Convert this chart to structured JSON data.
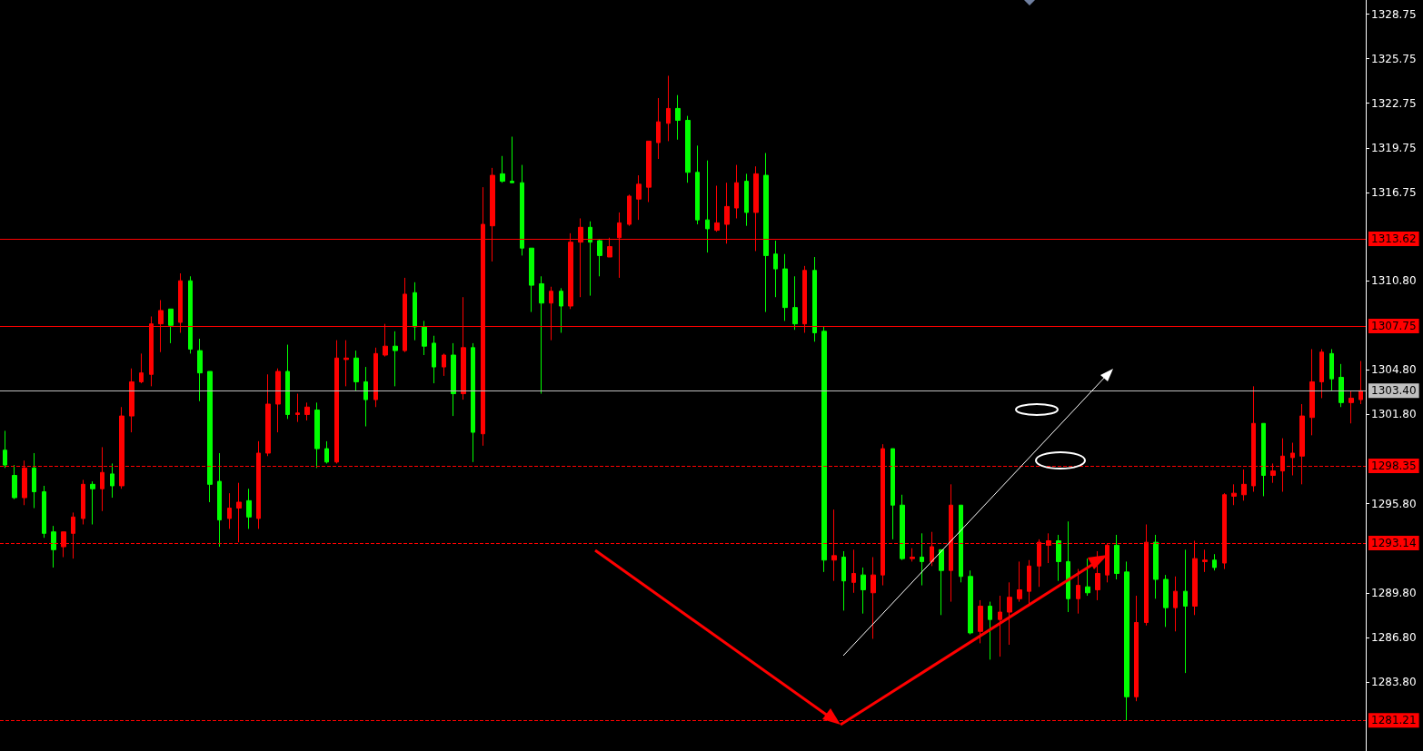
{
  "chart_data": {
    "type": "candlestick",
    "tick_labels": "y",
    "colors": [
      "#00ff00",
      "#00ff00",
      "#ff0000",
      "#00ff00",
      "#00ff00",
      "#00ff00",
      "#ff0000",
      "#ff0000",
      "#ff0000",
      "#00ff00",
      "#ff0000",
      "#00ff00",
      "#ff0000",
      "#ff0000",
      "#ff0000",
      "#ff0000",
      "#ff0000",
      "#00ff00",
      "#ff0000",
      "#00ff00",
      "#00ff00",
      "#00ff00",
      "#00ff00",
      "#ff0000",
      "#ff0000",
      "#00ff00",
      "#ff0000",
      "#ff0000",
      "#ff0000",
      "#00ff00",
      "#ff0000",
      "#ff0000",
      "#00ff00",
      "#00ff00",
      "#ff0000",
      "#ff0000",
      "#00ff00",
      "#00ff00",
      "#ff0000",
      "#ff0000",
      "#00ff00",
      "#ff0000",
      "#00ff00",
      "#00ff00",
      "#00ff00",
      "#ff0000",
      "#00ff00",
      "#ff0000",
      "#00ff00",
      "#ff0000",
      "#ff0000",
      "#00ff00",
      "#00ff00",
      "#00ff00",
      "#00ff00",
      "#00ff00",
      "#ff0000",
      "#00ff00",
      "#ff0000",
      "#ff0000",
      "#00ff00",
      "#00ff00",
      "#ff0000",
      "#ff0000",
      "#ff0000",
      "#ff0000",
      "#ff0000",
      "#ff0000",
      "#ff0000",
      "#00ff00",
      "#00ff00",
      "#00ff00",
      "#00ff00",
      "#ff0000",
      "#ff0000",
      "#ff0000",
      "#00ff00",
      "#ff0000",
      "#00ff00",
      "#00ff00",
      "#00ff00",
      "#00ff00",
      "#ff0000",
      "#00ff00",
      "#00ff00",
      "#ff0000",
      "#00ff00",
      "#ff0000",
      "#00ff00",
      "#ff0000",
      "#ff0000",
      "#00ff00",
      "#00ff00",
      "#ff0000",
      "#00ff00",
      "#ff0000",
      "#00ff00",
      "#ff0000",
      "#00ff00",
      "#00ff00",
      "#ff0000",
      "#00ff00",
      "#ff0000",
      "#ff0000",
      "#ff0000",
      "#ff0000",
      "#ff0000",
      "#ff0000",
      "#00ff00",
      "#00ff00",
      "#ff0000",
      "#00ff00",
      "#ff0000",
      "#ff0000",
      "#00ff00",
      "#00ff00",
      "#ff0000",
      "#ff0000",
      "#00ff00",
      "#00ff00",
      "#ff0000",
      "#00ff00",
      "#ff0000",
      "#ff0000",
      "#00ff00",
      "#ff0000",
      "#ff0000",
      "#ff0000",
      "#ff0000",
      "#00ff00",
      "#ff0000",
      "#ff0000",
      "#ff0000",
      "#ff0000",
      "#ff0000",
      "#ff0000",
      "#00ff00",
      "#00ff00",
      "#ff0000",
      "#ff0000"
    ],
    "categories": [
      null,
      null,
      null,
      null,
      null,
      null,
      null,
      null,
      null,
      null,
      null,
      null,
      null,
      null,
      null,
      null,
      null,
      null,
      null,
      null,
      null,
      null,
      null,
      null,
      null,
      null,
      null,
      null,
      null,
      null,
      null,
      null,
      null,
      null,
      null,
      null,
      null,
      null,
      null,
      null,
      null,
      null,
      null,
      null,
      null,
      null,
      null,
      null,
      null,
      null,
      null,
      null,
      null,
      null,
      null,
      null,
      null,
      null,
      null,
      null,
      null,
      null,
      null,
      null,
      null,
      null,
      null,
      null,
      null,
      null,
      null,
      null,
      null,
      null,
      null,
      null,
      null,
      null,
      null,
      null,
      null,
      null,
      null,
      null,
      null,
      null,
      null,
      null,
      null,
      null,
      null,
      null,
      null,
      null,
      null,
      null,
      null,
      null,
      null,
      null,
      null,
      null,
      null,
      null,
      null,
      null,
      null,
      null,
      null,
      null,
      null,
      null,
      null,
      null,
      null,
      null,
      null,
      null,
      null,
      null,
      null,
      null,
      null,
      null,
      null,
      null,
      null,
      null,
      null,
      null,
      null,
      null,
      null,
      null,
      null,
      null,
      null,
      null,
      null,
      null
    ],
    "ohlc": [
      [
        1299.4,
        1300.7,
        1298.2,
        1298.4
      ],
      [
        1297.7,
        1298.4,
        1296.1,
        1296.2
      ],
      [
        1296.2,
        1298.7,
        1295.7,
        1298.2
      ],
      [
        1298.2,
        1299.2,
        1295.5,
        1296.6
      ],
      [
        1296.6,
        1297.0,
        1293.5,
        1293.8
      ],
      [
        1293.9,
        1294.3,
        1291.5,
        1292.7
      ],
      [
        1292.9,
        1293.9,
        1292.2,
        1293.9
      ],
      [
        1293.8,
        1295.2,
        1292.1,
        1294.9
      ],
      [
        1294.8,
        1297.4,
        1294.4,
        1297.1
      ],
      [
        1297.1,
        1297.3,
        1294.4,
        1296.8
      ],
      [
        1296.8,
        1299.6,
        1295.3,
        1297.9
      ],
      [
        1297.8,
        1298.5,
        1296.2,
        1297.0
      ],
      [
        1297.0,
        1302.3,
        1296.8,
        1301.7
      ],
      [
        1301.7,
        1304.9,
        1300.6,
        1304.0
      ],
      [
        1304.0,
        1305.9,
        1303.9,
        1304.6
      ],
      [
        1304.5,
        1308.4,
        1303.7,
        1307.9
      ],
      [
        1307.9,
        1309.5,
        1306.0,
        1308.8
      ],
      [
        1308.9,
        1308.9,
        1306.6,
        1307.8
      ],
      [
        1308.0,
        1311.3,
        1307.3,
        1310.8
      ],
      [
        1310.8,
        1311.1,
        1305.9,
        1306.2
      ],
      [
        1306.1,
        1306.9,
        1302.7,
        1304.6
      ],
      [
        1304.7,
        1304.7,
        1295.9,
        1297.1
      ],
      [
        1297.3,
        1299.2,
        1292.9,
        1294.7
      ],
      [
        1294.8,
        1296.5,
        1294.1,
        1295.5
      ],
      [
        1295.5,
        1297.2,
        1293.2,
        1295.9
      ],
      [
        1296.0,
        1296.8,
        1294.1,
        1294.9
      ],
      [
        1294.8,
        1300.0,
        1294.1,
        1299.2
      ],
      [
        1299.2,
        1304.5,
        1299.0,
        1302.5
      ],
      [
        1302.5,
        1304.9,
        1300.6,
        1304.7
      ],
      [
        1304.7,
        1306.5,
        1301.5,
        1301.8
      ],
      [
        1301.8,
        1303.2,
        1301.3,
        1301.9
      ],
      [
        1301.8,
        1302.6,
        1301.4,
        1302.3
      ],
      [
        1302.1,
        1302.6,
        1298.2,
        1299.5
      ],
      [
        1299.5,
        1300.0,
        1298.5,
        1298.6
      ],
      [
        1298.6,
        1306.8,
        1298.5,
        1305.6
      ],
      [
        1305.5,
        1306.8,
        1303.7,
        1305.6
      ],
      [
        1305.6,
        1306.1,
        1303.4,
        1304.0
      ],
      [
        1304.0,
        1305.0,
        1301.0,
        1302.8
      ],
      [
        1302.8,
        1306.3,
        1302.3,
        1305.9
      ],
      [
        1305.8,
        1307.9,
        1305.7,
        1306.4
      ],
      [
        1306.4,
        1307.4,
        1303.7,
        1306.1
      ],
      [
        1306.1,
        1311.0,
        1306.0,
        1309.9
      ],
      [
        1310.0,
        1310.7,
        1306.8,
        1307.7
      ],
      [
        1307.7,
        1308.1,
        1305.8,
        1306.4
      ],
      [
        1306.6,
        1307.1,
        1303.9,
        1305.0
      ],
      [
        1305.0,
        1305.9,
        1304.4,
        1305.8
      ],
      [
        1305.8,
        1306.6,
        1301.7,
        1303.2
      ],
      [
        1303.2,
        1309.7,
        1302.8,
        1306.3
      ],
      [
        1306.3,
        1306.6,
        1298.6,
        1300.6
      ],
      [
        1300.5,
        1317.1,
        1299.7,
        1314.6
      ],
      [
        1314.5,
        1318.4,
        1312.1,
        1317.9
      ],
      [
        1318.0,
        1319.2,
        1317.4,
        1317.5
      ],
      [
        1317.5,
        1320.5,
        1317.4,
        1317.4
      ],
      [
        1317.4,
        1318.6,
        1312.5,
        1313.0
      ],
      [
        1313.0,
        1313.0,
        1308.7,
        1310.5
      ],
      [
        1310.6,
        1311.1,
        1303.2,
        1309.3
      ],
      [
        1309.3,
        1310.4,
        1306.8,
        1310.1
      ],
      [
        1310.1,
        1310.3,
        1307.3,
        1309.1
      ],
      [
        1309.1,
        1314.0,
        1308.9,
        1313.4
      ],
      [
        1313.4,
        1315.0,
        1309.7,
        1314.4
      ],
      [
        1314.4,
        1314.8,
        1309.8,
        1313.4
      ],
      [
        1313.5,
        1313.6,
        1311.1,
        1312.5
      ],
      [
        1312.4,
        1313.7,
        1312.4,
        1313.1
      ],
      [
        1313.7,
        1315.4,
        1311.0,
        1314.7
      ],
      [
        1314.6,
        1316.6,
        1314.5,
        1316.5
      ],
      [
        1316.3,
        1317.9,
        1314.9,
        1317.3
      ],
      [
        1317.1,
        1320.2,
        1316.1,
        1320.2
      ],
      [
        1320.1,
        1323.1,
        1319.0,
        1321.5
      ],
      [
        1321.4,
        1324.6,
        1320.2,
        1322.4
      ],
      [
        1322.4,
        1323.3,
        1320.3,
        1321.6
      ],
      [
        1321.6,
        1321.9,
        1317.4,
        1318.1
      ],
      [
        1318.1,
        1319.9,
        1314.6,
        1314.9
      ],
      [
        1314.9,
        1318.9,
        1312.7,
        1314.3
      ],
      [
        1314.2,
        1317.2,
        1314.1,
        1314.7
      ],
      [
        1314.6,
        1317.4,
        1313.3,
        1315.8
      ],
      [
        1315.7,
        1318.6,
        1315.0,
        1317.4
      ],
      [
        1317.5,
        1318.0,
        1314.5,
        1315.4
      ],
      [
        1315.4,
        1318.5,
        1312.8,
        1318.0
      ],
      [
        1317.9,
        1319.4,
        1308.7,
        1312.5
      ],
      [
        1312.6,
        1313.5,
        1309.7,
        1311.6
      ],
      [
        1311.6,
        1312.6,
        1308.1,
        1309.0
      ],
      [
        1309.0,
        1311.1,
        1307.5,
        1307.9
      ],
      [
        1307.9,
        1311.8,
        1307.3,
        1311.5
      ],
      [
        1311.5,
        1312.4,
        1306.7,
        1307.3
      ],
      [
        1307.4,
        1307.7,
        1291.2,
        1292.0
      ],
      [
        1292.0,
        1295.4,
        1290.6,
        1292.3
      ],
      [
        1292.2,
        1292.6,
        1288.6,
        1290.6
      ],
      [
        1290.5,
        1292.7,
        1289.8,
        1291.1
      ],
      [
        1291.0,
        1291.5,
        1288.4,
        1290.0
      ],
      [
        1289.8,
        1292.2,
        1286.7,
        1291.0
      ],
      [
        1291.0,
        1299.8,
        1290.3,
        1299.5
      ],
      [
        1299.5,
        1299.5,
        1293.4,
        1295.7
      ],
      [
        1295.7,
        1296.4,
        1292.0,
        1292.1
      ],
      [
        1292.1,
        1292.8,
        1291.9,
        1292.2
      ],
      [
        1292.2,
        1293.8,
        1290.3,
        1291.9
      ],
      [
        1291.9,
        1293.9,
        1291.6,
        1292.9
      ],
      [
        1292.7,
        1292.7,
        1288.3,
        1291.3
      ],
      [
        1291.3,
        1297.1,
        1289.2,
        1295.7
      ],
      [
        1295.7,
        1295.7,
        1290.5,
        1290.9
      ],
      [
        1290.9,
        1291.3,
        1287.0,
        1287.1
      ],
      [
        1287.2,
        1289.3,
        1286.4,
        1288.9
      ],
      [
        1288.9,
        1289.2,
        1285.3,
        1288.0
      ],
      [
        1288.0,
        1289.6,
        1285.5,
        1288.5
      ],
      [
        1288.5,
        1290.5,
        1286.3,
        1289.5
      ],
      [
        1289.4,
        1291.9,
        1289.2,
        1290.0
      ],
      [
        1289.9,
        1292.0,
        1288.9,
        1291.6
      ],
      [
        1291.6,
        1293.4,
        1290.2,
        1293.2
      ],
      [
        1293.0,
        1293.8,
        1291.8,
        1293.3
      ],
      [
        1293.3,
        1293.7,
        1290.6,
        1291.9
      ],
      [
        1291.9,
        1294.6,
        1288.5,
        1289.4
      ],
      [
        1289.4,
        1291.4,
        1288.4,
        1290.3
      ],
      [
        1290.2,
        1292.1,
        1289.6,
        1289.8
      ],
      [
        1290.0,
        1292.6,
        1289.3,
        1291.1
      ],
      [
        1291.0,
        1293.1,
        1290.5,
        1293.0
      ],
      [
        1293.0,
        1293.7,
        1290.7,
        1291.1
      ],
      [
        1291.2,
        1291.9,
        1281.21,
        1282.8
      ],
      [
        1282.8,
        1289.6,
        1282.5,
        1287.8
      ],
      [
        1287.8,
        1294.4,
        1287.6,
        1293.2
      ],
      [
        1293.2,
        1293.7,
        1289.4,
        1290.7
      ],
      [
        1290.7,
        1291.0,
        1287.5,
        1288.8
      ],
      [
        1288.8,
        1290.9,
        1287.2,
        1289.9
      ],
      [
        1289.9,
        1292.7,
        1284.4,
        1288.9
      ],
      [
        1288.9,
        1293.3,
        1288.3,
        1292.1
      ],
      [
        1291.9,
        1292.7,
        1291.2,
        1292.0
      ],
      [
        1292.0,
        1292.4,
        1291.3,
        1291.5
      ],
      [
        1291.8,
        1296.5,
        1291.4,
        1296.4
      ],
      [
        1296.3,
        1297.1,
        1295.7,
        1296.5
      ],
      [
        1296.4,
        1298.1,
        1296.0,
        1297.1
      ],
      [
        1297.0,
        1303.7,
        1296.6,
        1301.2
      ],
      [
        1301.2,
        1301.2,
        1296.3,
        1297.7
      ],
      [
        1297.7,
        1298.5,
        1297.2,
        1298.0
      ],
      [
        1298.0,
        1300.2,
        1296.6,
        1299.0
      ],
      [
        1298.9,
        1299.9,
        1297.7,
        1299.2
      ],
      [
        1299.0,
        1302.5,
        1297.1,
        1301.7
      ],
      [
        1301.6,
        1306.2,
        1300.4,
        1304.0
      ],
      [
        1304.0,
        1306.2,
        1302.9,
        1306.0
      ],
      [
        1305.9,
        1306.2,
        1303.4,
        1304.2
      ],
      [
        1304.3,
        1305.2,
        1302.3,
        1302.6
      ],
      [
        1302.6,
        1303.4,
        1301.2,
        1302.9
      ],
      [
        1302.8,
        1305.4,
        1302.5,
        1303.4
      ]
    ],
    "ylim": [
      1279.15,
      1329.7
    ],
    "yticks": [
      1328.75,
      1325.75,
      1322.75,
      1319.75,
      1316.75,
      {
        "value": 1310.8,
        "label": "1310.80"
      },
      {
        "value": 1304.8,
        "label": "1304.80"
      },
      {
        "value": 1301.8,
        "label": "1301.80"
      },
      {
        "value": 1295.8,
        "label": "1295.80"
      },
      {
        "value": 1289.8,
        "label": "1289.80"
      },
      {
        "value": 1286.8,
        "label": "1286.80"
      },
      {
        "value": 1283.8,
        "label": "1283.80"
      }
    ],
    "ref_lines": [
      {
        "axis": "y",
        "value": 1313.62,
        "label": "1313.62",
        "color": "#ff0000",
        "line_style": "solid"
      },
      {
        "axis": "y",
        "value": 1307.75,
        "label": "1307.75",
        "color": "#ff0000",
        "line_style": "solid"
      },
      {
        "axis": "y",
        "value": 1303.4,
        "label": "1303.40",
        "color": "#c0c0c0",
        "line_style": "solid"
      },
      {
        "axis": "y",
        "value": 1298.35,
        "label": "1298.35",
        "color": "#ff0000",
        "line_style": "dashed"
      },
      {
        "axis": "y",
        "value": 1293.14,
        "label": "1293.14",
        "color": "#ff0000",
        "line_style": "dashed"
      },
      {
        "axis": "y",
        "value": 1281.21,
        "label": "1281.21",
        "color": "#ff0000",
        "line_style": "dashed"
      }
    ]
  }
}
